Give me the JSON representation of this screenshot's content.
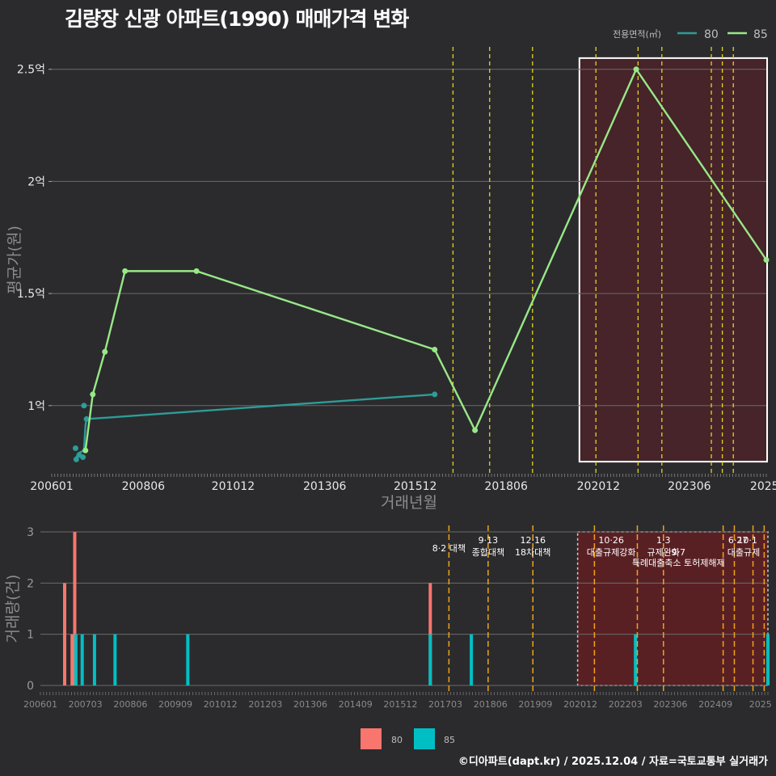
{
  "title": "김량장 신광 아파트(1990) 매매가격 변화",
  "credit": "©디아파트(dapt.kr) / 2025.12.04 / 자료=국토교통부 실거래가",
  "colors": {
    "s80_line": "#2e9c97",
    "s85_line": "#98e887",
    "bar80": "#f8766d",
    "bar85": "#00bfc4",
    "vline_top": "#e5d31e",
    "vline_bottom": "#f0a318",
    "shade": "#5c1f26"
  },
  "chart_data": [
    {
      "type": "line",
      "title": "김량장 신광 아파트(1990) 매매가격 변화",
      "xlabel": "거래년월",
      "ylabel": "평균가(원)",
      "legend_title": "전용면적(㎡)",
      "xlim": [
        2006.0,
        2025.5
      ],
      "ylim": [
        0.7,
        2.6
      ],
      "yticks": [
        1,
        1.5,
        2,
        2.5
      ],
      "yticklabels": [
        "1억",
        "1.5억",
        "2억",
        "2.5억"
      ],
      "xtick_labels": [
        "200601",
        "200806",
        "201012",
        "201306",
        "201512",
        "201806",
        "202012",
        "202306",
        "2025"
      ],
      "series": [
        {
          "name": "80",
          "points": [
            {
              "x": 2006.65,
              "y": 0.81
            },
            {
              "x": 2006.67,
              "y": 0.76
            },
            {
              "x": 2006.75,
              "y": 0.78
            },
            {
              "x": 2006.85,
              "y": 0.77
            },
            {
              "x": 2006.88,
              "y": 1.0
            },
            {
              "x": 2006.95,
              "y": 0.94
            },
            {
              "x": 2016.45,
              "y": 1.05
            }
          ],
          "line": [
            {
              "x": 2006.67,
              "y": 0.77
            },
            {
              "x": 2006.75,
              "y": 0.79
            },
            {
              "x": 2006.88,
              "y": 0.8
            },
            {
              "x": 2006.92,
              "y": 0.91
            },
            {
              "x": 2006.95,
              "y": 0.94
            },
            {
              "x": 2016.45,
              "y": 1.05
            }
          ]
        },
        {
          "name": "85",
          "points": [
            {
              "x": 2006.92,
              "y": 0.8
            },
            {
              "x": 2007.12,
              "y": 1.05
            },
            {
              "x": 2007.45,
              "y": 1.24
            },
            {
              "x": 2008.0,
              "y": 1.6
            },
            {
              "x": 2009.95,
              "y": 1.6
            },
            {
              "x": 2016.45,
              "y": 1.25
            },
            {
              "x": 2017.55,
              "y": 0.89
            },
            {
              "x": 2021.95,
              "y": 2.5
            },
            {
              "x": 2025.5,
              "y": 1.65
            }
          ]
        }
      ],
      "vlines": [
        2016.95,
        2017.95,
        2019.12,
        2020.85,
        2022.0,
        2022.65,
        2024.0,
        2024.3,
        2024.6
      ],
      "shade_range": [
        2020.4,
        2025.5
      ],
      "shade_ylim": [
        0.75,
        2.55
      ]
    },
    {
      "type": "bar",
      "xlabel": "",
      "ylabel": "거래량(건)",
      "xlim": [
        2006.0,
        2025.5
      ],
      "ylim": [
        0,
        3
      ],
      "yticks": [
        0,
        1,
        2,
        3
      ],
      "xtick_labels": [
        "200601",
        "200703",
        "200806",
        "200909",
        "201012",
        "201203",
        "201306",
        "201409",
        "201512",
        "201703",
        "201806",
        "201909",
        "202012",
        "202203",
        "202306",
        "202409",
        "2025"
      ],
      "series": [
        {
          "name": "80",
          "bars": [
            {
              "x": 2006.65,
              "y": 2
            },
            {
              "x": 2006.85,
              "y": 1
            },
            {
              "x": 2006.92,
              "y": 3
            },
            {
              "x": 2016.45,
              "y": 2
            }
          ]
        },
        {
          "name": "85",
          "bars": [
            {
              "x": 2006.95,
              "y": 1
            },
            {
              "x": 2007.12,
              "y": 1
            },
            {
              "x": 2007.45,
              "y": 1
            },
            {
              "x": 2008.0,
              "y": 1
            },
            {
              "x": 2009.95,
              "y": 1
            },
            {
              "x": 2016.45,
              "y": 1
            },
            {
              "x": 2017.55,
              "y": 1
            },
            {
              "x": 2021.95,
              "y": 1
            },
            {
              "x": 2025.5,
              "y": 1
            }
          ]
        }
      ],
      "vlines": [
        2016.95,
        2018.0,
        2019.2,
        2020.85,
        2022.0,
        2022.7,
        2024.3,
        2024.6,
        2025.1,
        2025.4
      ],
      "shade_range": [
        2020.4,
        2025.5
      ],
      "annotations": [
        {
          "x": 2016.95,
          "row": 1,
          "text": "8·2 대책"
        },
        {
          "x": 2018.0,
          "row": 0,
          "text": "9·13"
        },
        {
          "x": 2018.0,
          "row": 1.5,
          "text": "종합대책"
        },
        {
          "x": 2019.2,
          "row": 0,
          "text": "12·16"
        },
        {
          "x": 2019.2,
          "row": 1.5,
          "text": "18차대책"
        },
        {
          "x": 2021.3,
          "row": 0,
          "text": "10·26"
        },
        {
          "x": 2021.3,
          "row": 1.5,
          "text": "대출규제강화"
        },
        {
          "x": 2022.7,
          "row": 0,
          "text": "1·3"
        },
        {
          "x": 2022.7,
          "row": 1.5,
          "text": "규제완화"
        },
        {
          "x": 2023.1,
          "row": 1.5,
          "text": "9·7"
        },
        {
          "x": 2023.1,
          "row": 2.8,
          "text": "특례대출축소 토허제해제"
        },
        {
          "x": 2024.7,
          "row": 0,
          "text": "6·27"
        },
        {
          "x": 2024.95,
          "row": 0,
          "text": "10·1"
        },
        {
          "x": 2024.85,
          "row": 1.5,
          "text": "대출규제"
        }
      ]
    }
  ],
  "legend_bottom": {
    "items": [
      "80",
      "85"
    ]
  }
}
